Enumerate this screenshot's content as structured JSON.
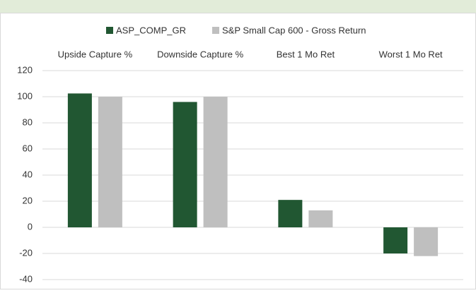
{
  "chart_data": {
    "type": "bar",
    "categories": [
      "Upside Capture %",
      "Downside Capture %",
      "Best 1 Mo Ret",
      "Worst 1 Mo Ret"
    ],
    "series": [
      {
        "name": "ASP_COMP_GR",
        "color": "#215732",
        "values": [
          102.5,
          96,
          21,
          -20
        ]
      },
      {
        "name": "S&P Small Cap 600 - Gross Return",
        "color": "#bfbfbf",
        "values": [
          100,
          100,
          13,
          -22
        ]
      }
    ],
    "ylim": [
      -40,
      120
    ],
    "yticks": [
      -40,
      -20,
      0,
      20,
      40,
      60,
      80,
      100,
      120
    ],
    "grid": true
  }
}
